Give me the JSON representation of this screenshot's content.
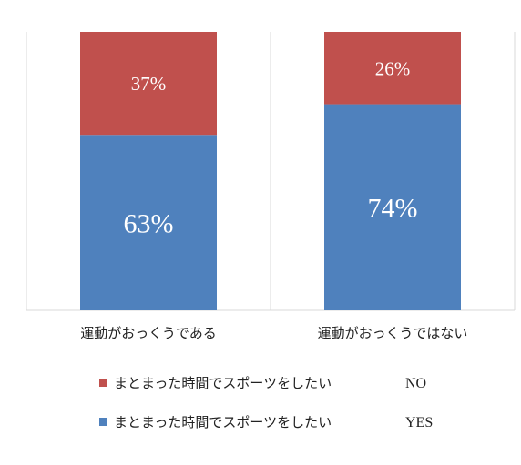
{
  "chart_data": {
    "type": "bar",
    "stacked": true,
    "percent_stacked": true,
    "categories": [
      "運動がおっくうである",
      "運動がおっくうではない"
    ],
    "series": [
      {
        "name": "まとまった時間でスポーツをしたい　YES",
        "values": [
          63,
          74
        ],
        "labels": [
          "63%",
          "74%"
        ],
        "color": "#4F81BD"
      },
      {
        "name": "まとまった時間でスポーツをしたい　NO",
        "values": [
          37,
          26
        ],
        "labels": [
          "37%",
          "26%"
        ],
        "color": "#C0504D"
      }
    ],
    "ylim": [
      0,
      100
    ],
    "grid": false,
    "legend_position": "bottom"
  },
  "legend": [
    {
      "text": "まとまった時間でスポーツをしたい",
      "suffix": "NO",
      "color": "#C0504D"
    },
    {
      "text": "まとまった時間でスポーツをしたい",
      "suffix": "YES",
      "color": "#4F81BD"
    }
  ]
}
